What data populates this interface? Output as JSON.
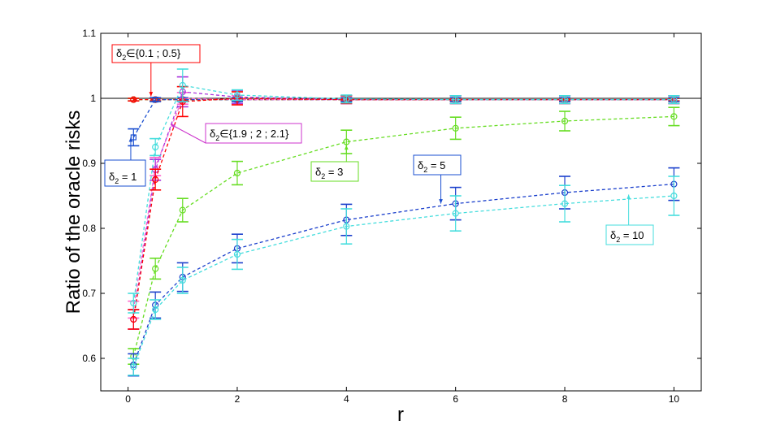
{
  "chart_data": {
    "type": "line",
    "title": "",
    "xlabel": "r",
    "ylabel": "Ratio of the oracle risks",
    "xlim": [
      -0.5,
      10.5
    ],
    "ylim": [
      0.55,
      1.1
    ],
    "x": [
      0.1,
      0.5,
      1,
      2,
      4,
      6,
      8,
      10
    ],
    "xticks": [
      0,
      2,
      4,
      6,
      8,
      10
    ],
    "yticks": [
      0.6,
      0.7,
      0.8,
      0.9,
      1,
      1.1
    ],
    "xtick_labels": [
      "0",
      "2",
      "4",
      "6",
      "8",
      "10"
    ],
    "ytick_labels": [
      "0.6",
      "0.7",
      "0.8",
      "0.9",
      "1",
      "1.1"
    ],
    "grid": false,
    "reference_line_y": 1,
    "series": [
      {
        "color": "#00cc00",
        "marker": "o",
        "values": [
          0.998,
          0.998,
          0.998,
          0.998,
          0.998,
          0.998,
          0.998,
          0.998
        ],
        "err": [
          0.002,
          0.002,
          0.002,
          0.002,
          0.002,
          0.002,
          0.002,
          0.002
        ]
      },
      {
        "color": "#ff0000",
        "marker": "o",
        "values": [
          0.998,
          0.998,
          0.998,
          0.998,
          0.998,
          0.998,
          0.998,
          0.998
        ],
        "err": [
          0.002,
          0.002,
          0.002,
          0.002,
          0.002,
          0.002,
          0.002,
          0.002
        ]
      },
      {
        "color": "#1a4fd0",
        "marker": "s",
        "values": [
          0.94,
          0.998,
          0.998,
          0.998,
          0.998,
          0.998,
          0.998,
          0.998
        ],
        "err": [
          0.013,
          0.003,
          0.003,
          0.003,
          0.003,
          0.003,
          0.003,
          0.003
        ]
      },
      {
        "color": "#ff66cc",
        "marker": "+",
        "values": [
          0.675,
          0.895,
          1.0,
          0.998,
          0.998,
          0.998,
          0.998,
          0.998
        ],
        "err": [
          0.013,
          0.014,
          0.009,
          0.006,
          0.006,
          0.006,
          0.006,
          0.006
        ]
      },
      {
        "color": "#aa33dd",
        "marker": "o",
        "values": [
          0.66,
          0.89,
          1.01,
          1.002,
          0.998,
          0.998,
          0.998,
          0.998
        ],
        "err": [
          0.015,
          0.016,
          0.023,
          0.01,
          0.006,
          0.006,
          0.006,
          0.006
        ]
      },
      {
        "color": "#ff0000",
        "marker": "o",
        "values": [
          0.66,
          0.875,
          0.995,
          1.0,
          0.998,
          0.998,
          0.998,
          0.998
        ],
        "err": [
          0.015,
          0.016,
          0.023,
          0.01,
          0.006,
          0.006,
          0.006,
          0.006
        ]
      },
      {
        "color": "#44dddd",
        "marker": "o",
        "values": [
          0.685,
          0.925,
          1.02,
          1.005,
          0.999,
          0.998,
          0.998,
          0.998
        ],
        "err": [
          0.015,
          0.013,
          0.025,
          0.008,
          0.006,
          0.006,
          0.006,
          0.006
        ]
      },
      {
        "color": "#66dd22",
        "marker": "o",
        "values": [
          0.603,
          0.738,
          0.828,
          0.885,
          0.933,
          0.954,
          0.965,
          0.972
        ],
        "err": [
          0.012,
          0.016,
          0.018,
          0.018,
          0.018,
          0.017,
          0.015,
          0.014
        ]
      },
      {
        "color": "#1a3fcc",
        "marker": "o",
        "values": [
          0.59,
          0.682,
          0.725,
          0.769,
          0.813,
          0.838,
          0.855,
          0.868
        ],
        "err": [
          0.017,
          0.02,
          0.022,
          0.022,
          0.024,
          0.025,
          0.025,
          0.025
        ]
      },
      {
        "color": "#44dddd",
        "marker": "o",
        "values": [
          0.587,
          0.675,
          0.72,
          0.76,
          0.803,
          0.823,
          0.838,
          0.85
        ],
        "err": [
          0.013,
          0.015,
          0.02,
          0.023,
          0.027,
          0.027,
          0.028,
          0.03
        ]
      }
    ],
    "annotations": [
      {
        "text_main": "δ",
        "text_sub": "2",
        "text_rest": "∈{0.1 ; 0.5}",
        "border": "#ff0000",
        "point": [
          0.42,
          1.003
        ]
      },
      {
        "text_main": "δ",
        "text_sub": "2",
        "text_rest": " = 1",
        "border": "#1a4fd0",
        "point": [
          0.05,
          0.94
        ]
      },
      {
        "text_main": "δ",
        "text_sub": "2",
        "text_rest": "∈{1.9 ; 2 ; 2.1}",
        "border": "#cc33cc",
        "point": [
          0.78,
          0.96
        ]
      },
      {
        "text_main": "δ",
        "text_sub": "2",
        "text_rest": " = 3",
        "border": "#66dd22",
        "point": [
          4.0,
          0.928
        ]
      },
      {
        "text_main": "δ",
        "text_sub": "2",
        "text_rest": " = 5",
        "border": "#1a4fd0",
        "point": [
          5.73,
          0.838
        ]
      },
      {
        "text_main": "δ",
        "text_sub": "2",
        "text_rest": " = 10",
        "border": "#44dddd",
        "point": [
          9.17,
          0.852
        ]
      }
    ]
  }
}
